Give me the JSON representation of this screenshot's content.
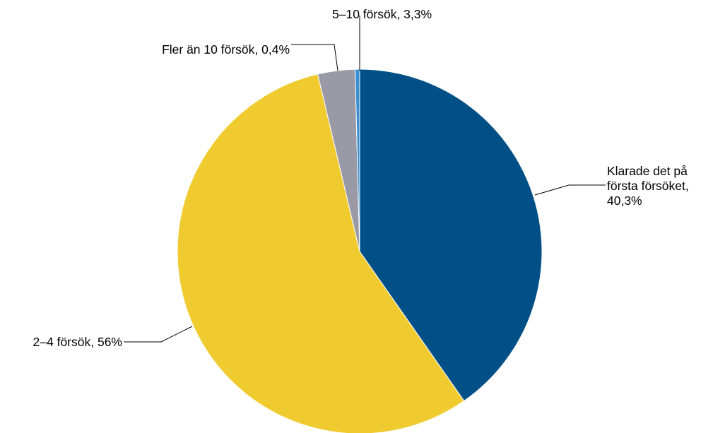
{
  "chart_data": {
    "type": "pie",
    "start_angle_deg": 0,
    "direction": "clockwise",
    "slices": [
      {
        "label": "Klarade det på första försöket, 40,3%",
        "lines": [
          "Klarade det på",
          "första försöket,",
          "40,3%"
        ],
        "value": 40.3,
        "color": "#004f86"
      },
      {
        "label": "2–4 försök, 56%",
        "lines": [
          "2–4 försök, 56%"
        ],
        "value": 56,
        "color": "#f0cb2f"
      },
      {
        "label": "5–10 försök, 3,3%",
        "lines": [
          "5–10 försök, 3,3%"
        ],
        "value": 3.3,
        "color": "#9a9aa7"
      },
      {
        "label": "Fler än 10 försök, 0,4%",
        "lines": [
          "Fler än 10 försök, 0,4%"
        ],
        "value": 0.4,
        "color": "#3a8fd0"
      }
    ]
  }
}
